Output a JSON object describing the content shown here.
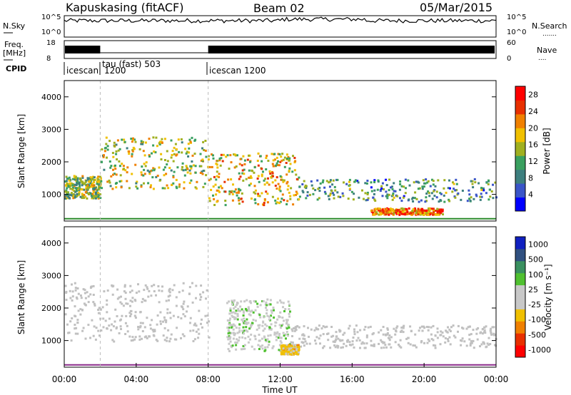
{
  "header": {
    "station": "Kapuskasing (fitACF)",
    "beam": "Beam 02",
    "date": "05/Mar/2015"
  },
  "top_panels": {
    "nsky_label": "N.Sky",
    "nsearch_label": "N.Search",
    "nsky_ticks": [
      "10^5",
      "10^0"
    ],
    "nsearch_ticks": [
      "10^5",
      "10^0"
    ],
    "freq_label_line1": "Freq.",
    "freq_label_line2": "[MHz]",
    "freq_ticks": [
      "18",
      "8"
    ],
    "nave_label": "Nave",
    "nave_ticks": [
      "60",
      "0"
    ],
    "cpid_label": "CPID",
    "cpid_segments": [
      {
        "label": "icescan",
        "start_hour": 0
      },
      {
        "label": "1200",
        "start_hour": 0
      },
      {
        "label": "tau (fast) 503",
        "start_hour": 2
      },
      {
        "label": "icescan 1200",
        "start_hour": 8
      }
    ]
  },
  "colors": {
    "power_scale": [
      "#0000ff",
      "#3a55c8",
      "#3d7f7f",
      "#3aa060",
      "#a0b020",
      "#f0c000",
      "#f08000",
      "#e83000",
      "#ff0000"
    ],
    "velocity_scale": [
      "#ff0000",
      "#e83000",
      "#f08000",
      "#f0c000",
      "#c8c8c8",
      "#c8c8c8",
      "#50c030",
      "#3a9060",
      "#305080",
      "#1020c0"
    ],
    "ground_scatter": "#c0c0c0"
  },
  "chart_data": [
    {
      "type": "heatmap",
      "name": "power",
      "ylabel": "Slant Range [km]",
      "ylim": [
        180,
        4500
      ],
      "xlim_hours": [
        0,
        24
      ],
      "x_ticks": [
        "00:00",
        "04:00",
        "08:00",
        "12:00",
        "16:00",
        "20:00",
        "00:00"
      ],
      "y_ticks": [
        1000,
        2000,
        3000,
        4000
      ],
      "colorbar_label": "Power [dB]",
      "colorbar_ticks": [
        4,
        8,
        12,
        16,
        20,
        24,
        28
      ],
      "colorbar_range": [
        0,
        30
      ],
      "features": [
        {
          "hour_range": [
            0,
            2
          ],
          "range_km": [
            900,
            1600
          ],
          "level_db": 14
        },
        {
          "hour_range": [
            2,
            8
          ],
          "range_km": [
            1200,
            2800
          ],
          "level_db": 16
        },
        {
          "hour_range": [
            8,
            13
          ],
          "range_km": [
            700,
            2300
          ],
          "level_db": 18
        },
        {
          "hour_range": [
            13,
            24
          ],
          "range_km": [
            800,
            1500
          ],
          "level_db": 10
        },
        {
          "hour_range": [
            17,
            21
          ],
          "range_km": [
            400,
            600
          ],
          "level_db": 22
        }
      ]
    },
    {
      "type": "heatmap",
      "name": "velocity",
      "ylabel": "Slant Range [km]",
      "xlabel": "Time UT",
      "ylim": [
        180,
        4500
      ],
      "xlim_hours": [
        0,
        24
      ],
      "x_ticks": [
        "00:00",
        "04:00",
        "08:00",
        "12:00",
        "16:00",
        "20:00",
        "00:00"
      ],
      "y_ticks": [
        1000,
        2000,
        3000,
        4000
      ],
      "colorbar_label": "Velocity [m s⁻¹]",
      "colorbar_ticks": [
        1000,
        500,
        100,
        25,
        -25,
        -100,
        -500,
        -1000
      ],
      "features": [
        {
          "hour_range": [
            0,
            8
          ],
          "range_km": [
            1000,
            2800
          ],
          "kind": "ground scatter"
        },
        {
          "hour_range": [
            9,
            12.5
          ],
          "range_km": [
            700,
            2300
          ],
          "velocity": 100
        },
        {
          "hour_range": [
            12.5,
            24
          ],
          "range_km": [
            800,
            1500
          ],
          "kind": "ground scatter"
        },
        {
          "hour_range": [
            12,
            13
          ],
          "range_km": [
            600,
            900
          ],
          "velocity": -300
        }
      ]
    }
  ]
}
